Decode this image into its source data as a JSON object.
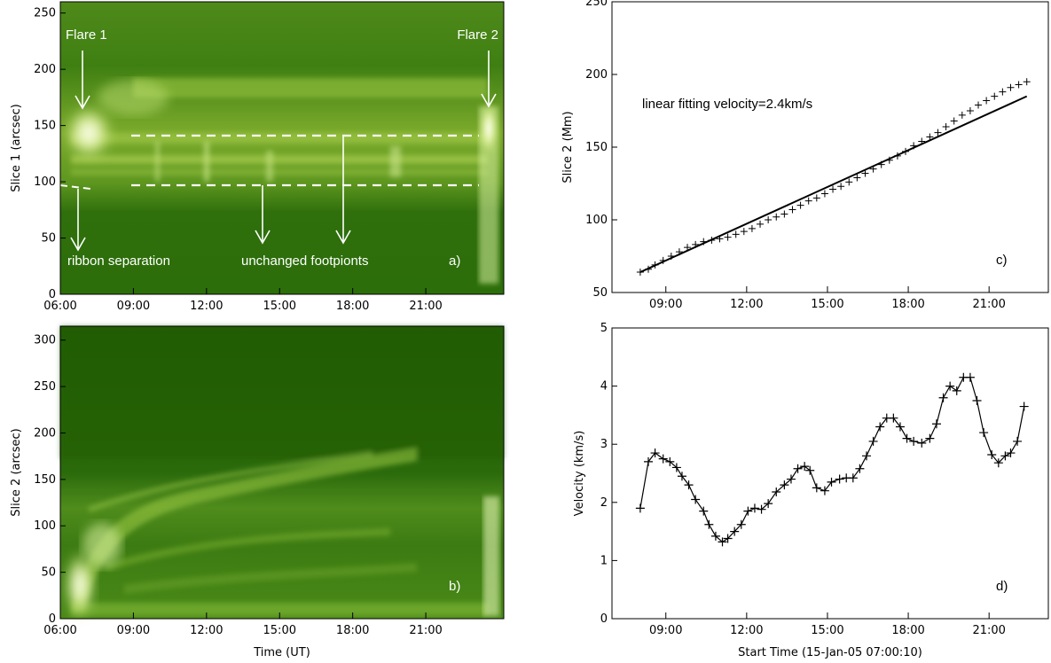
{
  "chart_data": [
    {
      "id": "a",
      "type": "heatmap",
      "colormap": "green",
      "panel_label": "a)",
      "ylabel": "Slice 1 (arcsec)",
      "xlabel": "",
      "ylim": [
        0,
        260
      ],
      "yticks": [
        0,
        50,
        100,
        150,
        200,
        250
      ],
      "xlim_hours": [
        6,
        24.2
      ],
      "xticks": [
        "06:00",
        "09:00",
        "12:00",
        "15:00",
        "18:00",
        "21:00"
      ],
      "annotations": [
        "Flare 1",
        "Flare 2",
        "ribbon separation",
        "unchanged footpionts"
      ],
      "dashed_lines_y": [
        142,
        97
      ]
    },
    {
      "id": "b",
      "type": "heatmap",
      "colormap": "green",
      "panel_label": "b)",
      "ylabel": "Slice 2 (arcsec)",
      "xlabel": "Time (UT)",
      "ylim": [
        0,
        315
      ],
      "yticks": [
        0,
        50,
        100,
        150,
        200,
        250,
        300
      ],
      "xlim_hours": [
        6,
        24.2
      ],
      "xticks": [
        "06:00",
        "09:00",
        "12:00",
        "15:00",
        "18:00",
        "21:00"
      ]
    },
    {
      "id": "c",
      "type": "scatter",
      "panel_label": "c)",
      "ylabel": "Slice 2 (Mm)",
      "xlabel": "",
      "ylim": [
        50,
        250
      ],
      "yticks": [
        50,
        100,
        150,
        200,
        250
      ],
      "xlim_hours": [
        7,
        23.2
      ],
      "xticks": [
        "09:00",
        "12:00",
        "15:00",
        "18:00",
        "21:00"
      ],
      "annotation": "linear fitting velocity=2.4km/s",
      "fit_line": {
        "x": [
          8.05,
          22.4
        ],
        "y": [
          64,
          185
        ]
      },
      "series": [
        {
          "marker": "+",
          "x": [
            8.05,
            8.35,
            8.6,
            8.9,
            9.2,
            9.5,
            9.8,
            10.1,
            10.4,
            10.7,
            11.0,
            11.3,
            11.6,
            11.9,
            12.2,
            12.5,
            12.8,
            13.1,
            13.4,
            13.7,
            14.0,
            14.3,
            14.6,
            14.9,
            15.2,
            15.5,
            15.8,
            16.1,
            16.4,
            16.7,
            17.0,
            17.3,
            17.6,
            17.9,
            18.2,
            18.5,
            18.8,
            19.1,
            19.4,
            19.7,
            20.0,
            20.3,
            20.6,
            20.9,
            21.2,
            21.5,
            21.8,
            22.1,
            22.4
          ],
          "y": [
            64,
            66,
            69,
            72,
            75,
            78,
            81,
            83,
            85,
            86,
            87,
            88,
            90,
            92,
            94,
            97,
            100,
            102,
            104,
            107,
            110,
            113,
            115,
            118,
            121,
            123,
            126,
            129,
            132,
            135,
            138,
            141,
            144,
            147,
            151,
            154,
            157,
            160,
            164,
            168,
            172,
            175,
            179,
            182,
            185,
            188,
            191,
            193,
            195
          ]
        }
      ]
    },
    {
      "id": "d",
      "type": "line",
      "panel_label": "d)",
      "ylabel": "Velocity (km/s)",
      "xlabel": "Start Time (15-Jan-05 07:00:10)",
      "ylim": [
        0,
        5
      ],
      "yticks": [
        0,
        1,
        2,
        3,
        4,
        5
      ],
      "xlim_hours": [
        7,
        23.2
      ],
      "xticks": [
        "09:00",
        "12:00",
        "15:00",
        "18:00",
        "21:00"
      ],
      "series": [
        {
          "marker": "+",
          "x": [
            8.05,
            8.35,
            8.6,
            8.9,
            9.15,
            9.4,
            9.6,
            9.85,
            10.1,
            10.4,
            10.6,
            10.85,
            11.1,
            11.3,
            11.55,
            11.8,
            12.05,
            12.3,
            12.55,
            12.8,
            13.1,
            13.4,
            13.65,
            13.9,
            14.15,
            14.35,
            14.6,
            14.9,
            15.15,
            15.45,
            15.7,
            15.95,
            16.2,
            16.45,
            16.7,
            16.95,
            17.2,
            17.45,
            17.7,
            17.95,
            18.2,
            18.5,
            18.8,
            19.05,
            19.3,
            19.55,
            19.8,
            20.05,
            20.3,
            20.55,
            20.8,
            21.1,
            21.35,
            21.6,
            21.8,
            22.05,
            22.3
          ],
          "y": [
            1.9,
            2.7,
            2.85,
            2.75,
            2.7,
            2.6,
            2.45,
            2.3,
            2.05,
            1.85,
            1.62,
            1.42,
            1.32,
            1.38,
            1.5,
            1.62,
            1.85,
            1.9,
            1.88,
            1.98,
            2.18,
            2.3,
            2.4,
            2.58,
            2.62,
            2.55,
            2.25,
            2.2,
            2.35,
            2.4,
            2.42,
            2.42,
            2.58,
            2.8,
            3.05,
            3.3,
            3.45,
            3.45,
            3.3,
            3.1,
            3.05,
            3.02,
            3.1,
            3.35,
            3.8,
            4.0,
            3.92,
            4.15,
            4.15,
            3.75,
            3.2,
            2.82,
            2.68,
            2.8,
            2.85,
            3.05,
            3.65
          ]
        }
      ]
    }
  ]
}
